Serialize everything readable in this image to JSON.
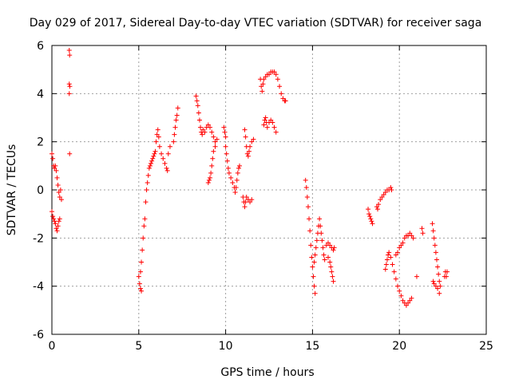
{
  "chart_data": {
    "type": "scatter",
    "title": "Day 029 of 2017, Sidereal Day-to-day VTEC variation (SDTVAR) for receiver saga",
    "xlabel": "GPS time / hours",
    "ylabel": "SDTVAR / TECUs",
    "xlim": [
      0,
      25
    ],
    "ylim": [
      -6,
      6
    ],
    "xticks": [
      0,
      5,
      10,
      15,
      20,
      25
    ],
    "yticks": [
      -6,
      -4,
      -2,
      0,
      2,
      4,
      6
    ],
    "grid": true,
    "marker": "+",
    "color": "#ff0000",
    "series": [
      {
        "points": [
          [
            0.0,
            1.5
          ],
          [
            0.05,
            1.3
          ],
          [
            0.1,
            1.0
          ],
          [
            0.15,
            0.9
          ],
          [
            0.2,
            1.0
          ],
          [
            0.25,
            0.8
          ],
          [
            0.3,
            0.5
          ],
          [
            0.35,
            0.2
          ],
          [
            0.4,
            -0.1
          ],
          [
            0.45,
            -0.3
          ],
          [
            0.5,
            0.0
          ],
          [
            0.55,
            -0.4
          ],
          [
            0.0,
            -0.9
          ],
          [
            0.05,
            -1.1
          ],
          [
            0.1,
            -1.2
          ],
          [
            0.15,
            -1.3
          ],
          [
            0.2,
            -1.4
          ],
          [
            0.25,
            -1.6
          ],
          [
            0.3,
            -1.7
          ],
          [
            0.35,
            -1.5
          ],
          [
            0.4,
            -1.3
          ],
          [
            0.45,
            -1.2
          ],
          [
            1.0,
            5.8
          ],
          [
            1.02,
            5.6
          ],
          [
            1.0,
            4.4
          ],
          [
            1.03,
            4.3
          ],
          [
            1.0,
            4.0
          ],
          [
            1.02,
            1.5
          ],
          [
            5.0,
            -3.6
          ],
          [
            5.05,
            -3.9
          ],
          [
            5.1,
            -4.1
          ],
          [
            5.15,
            -4.2
          ],
          [
            5.1,
            -3.4
          ],
          [
            5.15,
            -3.0
          ],
          [
            5.2,
            -2.5
          ],
          [
            5.25,
            -2.0
          ],
          [
            5.3,
            -1.5
          ],
          [
            5.35,
            -1.2
          ],
          [
            5.4,
            -0.5
          ],
          [
            5.45,
            0.0
          ],
          [
            5.5,
            0.3
          ],
          [
            5.55,
            0.6
          ],
          [
            5.6,
            0.9
          ],
          [
            5.65,
            1.0
          ],
          [
            5.7,
            1.1
          ],
          [
            5.75,
            1.2
          ],
          [
            5.8,
            1.3
          ],
          [
            5.85,
            1.4
          ],
          [
            5.9,
            1.5
          ],
          [
            5.95,
            1.6
          ],
          [
            6.0,
            2.0
          ],
          [
            6.05,
            2.3
          ],
          [
            6.1,
            2.5
          ],
          [
            6.15,
            2.2
          ],
          [
            6.2,
            1.8
          ],
          [
            6.3,
            1.5
          ],
          [
            6.4,
            1.3
          ],
          [
            6.5,
            1.1
          ],
          [
            6.6,
            0.9
          ],
          [
            6.65,
            0.8
          ],
          [
            6.7,
            1.5
          ],
          [
            6.8,
            1.8
          ],
          [
            7.0,
            2.0
          ],
          [
            7.05,
            2.3
          ],
          [
            7.1,
            2.6
          ],
          [
            7.15,
            2.9
          ],
          [
            7.2,
            3.1
          ],
          [
            7.25,
            3.4
          ],
          [
            8.3,
            3.9
          ],
          [
            8.35,
            3.7
          ],
          [
            8.4,
            3.5
          ],
          [
            8.45,
            3.2
          ],
          [
            8.5,
            2.9
          ],
          [
            8.55,
            2.6
          ],
          [
            8.6,
            2.4
          ],
          [
            8.65,
            2.3
          ],
          [
            8.7,
            2.5
          ],
          [
            8.8,
            2.4
          ],
          [
            8.9,
            2.6
          ],
          [
            9.0,
            2.7
          ],
          [
            9.1,
            2.6
          ],
          [
            9.2,
            2.4
          ],
          [
            9.3,
            2.2
          ],
          [
            9.4,
            2.0
          ],
          [
            9.5,
            2.1
          ],
          [
            9.0,
            0.3
          ],
          [
            9.05,
            0.4
          ],
          [
            9.1,
            0.5
          ],
          [
            9.15,
            0.7
          ],
          [
            9.2,
            1.0
          ],
          [
            9.25,
            1.3
          ],
          [
            9.3,
            1.6
          ],
          [
            9.4,
            1.8
          ],
          [
            9.9,
            2.6
          ],
          [
            9.95,
            2.4
          ],
          [
            10.0,
            2.2
          ],
          [
            10.0,
            1.8
          ],
          [
            10.05,
            1.5
          ],
          [
            10.1,
            1.2
          ],
          [
            10.15,
            0.9
          ],
          [
            10.2,
            0.7
          ],
          [
            10.3,
            0.5
          ],
          [
            10.4,
            0.3
          ],
          [
            10.5,
            0.1
          ],
          [
            10.55,
            -0.1
          ],
          [
            10.6,
            0.1
          ],
          [
            10.65,
            0.4
          ],
          [
            10.7,
            0.7
          ],
          [
            10.75,
            0.9
          ],
          [
            10.8,
            1.0
          ],
          [
            11.0,
            -0.3
          ],
          [
            11.05,
            -0.5
          ],
          [
            11.1,
            -0.7
          ],
          [
            11.15,
            -0.5
          ],
          [
            11.2,
            -0.3
          ],
          [
            11.3,
            -0.4
          ],
          [
            11.4,
            -0.5
          ],
          [
            11.5,
            -0.4
          ],
          [
            11.1,
            2.5
          ],
          [
            11.15,
            2.2
          ],
          [
            11.2,
            1.8
          ],
          [
            11.25,
            1.5
          ],
          [
            11.3,
            1.4
          ],
          [
            11.35,
            1.6
          ],
          [
            11.4,
            1.8
          ],
          [
            11.5,
            2.0
          ],
          [
            11.6,
            2.1
          ],
          [
            12.0,
            4.6
          ],
          [
            12.05,
            4.3
          ],
          [
            12.1,
            4.1
          ],
          [
            12.15,
            4.4
          ],
          [
            12.2,
            4.6
          ],
          [
            12.3,
            4.7
          ],
          [
            12.4,
            4.8
          ],
          [
            12.5,
            4.8
          ],
          [
            12.6,
            4.9
          ],
          [
            12.7,
            4.9
          ],
          [
            12.8,
            4.9
          ],
          [
            12.9,
            4.8
          ],
          [
            13.0,
            4.6
          ],
          [
            13.1,
            4.3
          ],
          [
            13.2,
            4.0
          ],
          [
            13.3,
            3.8
          ],
          [
            13.4,
            3.7
          ],
          [
            13.45,
            3.7
          ],
          [
            12.2,
            2.7
          ],
          [
            12.25,
            2.9
          ],
          [
            12.3,
            3.0
          ],
          [
            12.35,
            2.8
          ],
          [
            12.4,
            2.6
          ],
          [
            12.5,
            2.8
          ],
          [
            12.6,
            2.9
          ],
          [
            12.7,
            2.8
          ],
          [
            12.8,
            2.6
          ],
          [
            12.9,
            2.4
          ],
          [
            14.6,
            0.4
          ],
          [
            14.65,
            0.1
          ],
          [
            14.7,
            -0.3
          ],
          [
            14.75,
            -0.7
          ],
          [
            14.8,
            -1.2
          ],
          [
            14.85,
            -1.7
          ],
          [
            14.9,
            -2.3
          ],
          [
            14.95,
            -2.8
          ],
          [
            15.0,
            -3.2
          ],
          [
            15.05,
            -3.6
          ],
          [
            15.1,
            -4.0
          ],
          [
            15.15,
            -4.3
          ],
          [
            15.1,
            -3.0
          ],
          [
            15.15,
            -2.7
          ],
          [
            15.2,
            -2.4
          ],
          [
            15.25,
            -2.1
          ],
          [
            15.3,
            -1.8
          ],
          [
            15.35,
            -1.5
          ],
          [
            15.4,
            -1.2
          ],
          [
            15.45,
            -1.5
          ],
          [
            15.5,
            -1.8
          ],
          [
            15.55,
            -2.1
          ],
          [
            15.6,
            -2.4
          ],
          [
            15.65,
            -2.7
          ],
          [
            15.7,
            -2.9
          ],
          [
            15.8,
            -2.3
          ],
          [
            15.9,
            -2.2
          ],
          [
            16.0,
            -2.3
          ],
          [
            16.1,
            -2.4
          ],
          [
            16.2,
            -2.5
          ],
          [
            16.25,
            -2.4
          ],
          [
            15.9,
            -2.8
          ],
          [
            16.0,
            -3.0
          ],
          [
            16.05,
            -3.2
          ],
          [
            16.1,
            -3.4
          ],
          [
            16.15,
            -3.6
          ],
          [
            16.2,
            -3.8
          ],
          [
            18.2,
            -0.8
          ],
          [
            18.25,
            -1.0
          ],
          [
            18.3,
            -1.1
          ],
          [
            18.35,
            -1.2
          ],
          [
            18.4,
            -1.3
          ],
          [
            18.45,
            -1.4
          ],
          [
            18.7,
            -0.7
          ],
          [
            18.75,
            -0.8
          ],
          [
            18.8,
            -0.6
          ],
          [
            18.9,
            -0.4
          ],
          [
            19.0,
            -0.3
          ],
          [
            19.1,
            -0.2
          ],
          [
            19.2,
            -0.1
          ],
          [
            19.3,
            0.0
          ],
          [
            19.4,
            0.0
          ],
          [
            19.5,
            0.1
          ],
          [
            19.55,
            0.0
          ],
          [
            19.2,
            -3.3
          ],
          [
            19.25,
            -3.1
          ],
          [
            19.3,
            -2.9
          ],
          [
            19.35,
            -2.7
          ],
          [
            19.4,
            -2.6
          ],
          [
            19.5,
            -2.8
          ],
          [
            19.6,
            -3.1
          ],
          [
            19.7,
            -3.4
          ],
          [
            19.8,
            -3.7
          ],
          [
            19.9,
            -4.0
          ],
          [
            20.0,
            -4.2
          ],
          [
            20.1,
            -4.4
          ],
          [
            20.2,
            -4.6
          ],
          [
            20.3,
            -4.7
          ],
          [
            20.4,
            -4.8
          ],
          [
            20.5,
            -4.7
          ],
          [
            20.6,
            -4.6
          ],
          [
            20.7,
            -4.5
          ],
          [
            19.8,
            -2.7
          ],
          [
            19.9,
            -2.6
          ],
          [
            20.0,
            -2.4
          ],
          [
            20.1,
            -2.3
          ],
          [
            20.2,
            -2.2
          ],
          [
            20.3,
            -2.0
          ],
          [
            20.4,
            -1.9
          ],
          [
            20.5,
            -1.9
          ],
          [
            20.6,
            -1.8
          ],
          [
            20.7,
            -1.9
          ],
          [
            20.8,
            -2.0
          ],
          [
            21.0,
            -3.6
          ],
          [
            21.3,
            -1.6
          ],
          [
            21.35,
            -1.8
          ],
          [
            21.9,
            -1.4
          ],
          [
            21.95,
            -1.7
          ],
          [
            22.0,
            -2.0
          ],
          [
            22.05,
            -2.3
          ],
          [
            22.1,
            -2.6
          ],
          [
            22.15,
            -2.9
          ],
          [
            22.2,
            -3.2
          ],
          [
            22.25,
            -3.5
          ],
          [
            22.3,
            -3.8
          ],
          [
            22.35,
            -4.0
          ],
          [
            22.3,
            -4.3
          ],
          [
            22.2,
            -4.1
          ],
          [
            22.1,
            -4.0
          ],
          [
            22.0,
            -3.9
          ],
          [
            21.95,
            -3.8
          ],
          [
            22.6,
            -3.6
          ],
          [
            22.65,
            -3.4
          ],
          [
            22.7,
            -3.6
          ],
          [
            22.75,
            -3.4
          ]
        ]
      }
    ]
  }
}
